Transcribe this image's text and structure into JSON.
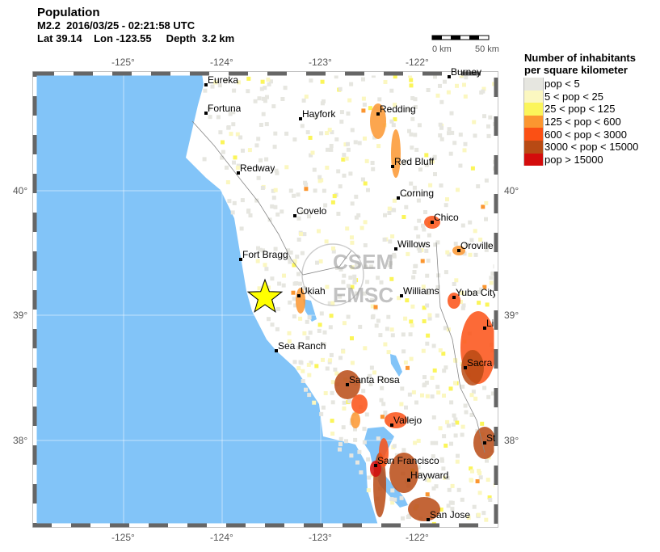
{
  "header": {
    "title": "Population",
    "event": "M2.2  2016/03/25 - 02:21:58 UTC",
    "location": "Lat 39.14    Lon -123.55     Depth  3.2 km"
  },
  "scale_bar": {
    "start_label": "0 km",
    "end_label": "50 km"
  },
  "legend": {
    "title_line1": "Number of inhabitants",
    "title_line2": "per square kilometer",
    "items": [
      {
        "label": "pop < 5",
        "color": "#e6e6e0"
      },
      {
        "label": "5 < pop < 25",
        "color": "#fbf7c0"
      },
      {
        "label": "25 < pop < 125",
        "color": "#fbf55a"
      },
      {
        "label": "125 < pop < 600",
        "color": "#fb9630"
      },
      {
        "label": "600 < pop < 3000",
        "color": "#fb5014"
      },
      {
        "label": "3000 < pop < 15000",
        "color": "#b84a14"
      },
      {
        "label": "pop > 15000",
        "color": "#d40c0c"
      }
    ]
  },
  "map": {
    "ocean_color": "#82c4f8",
    "epicenter_color": "#ffff00",
    "lon_ticks": [
      "-125°",
      "-124°",
      "-123°",
      "-122°"
    ],
    "lat_ticks": [
      "40°",
      "39°",
      "38°"
    ],
    "watermark": [
      "CSEM",
      "EMSC"
    ],
    "cities": [
      "Eureka",
      "Fortuna",
      "Hayfork",
      "Redding",
      "Redway",
      "Red Bluff",
      "Corning",
      "Covelo",
      "Chico",
      "Willows",
      "Oroville",
      "Fort Bragg",
      "Ukiah",
      "Williams",
      "Yuba City",
      "Sea Ranch",
      "Santa Rosa",
      "Vallejo",
      "San Francisco",
      "Hayward",
      "San Jose",
      "Sacra",
      "Li",
      "St",
      "Burney"
    ]
  }
}
